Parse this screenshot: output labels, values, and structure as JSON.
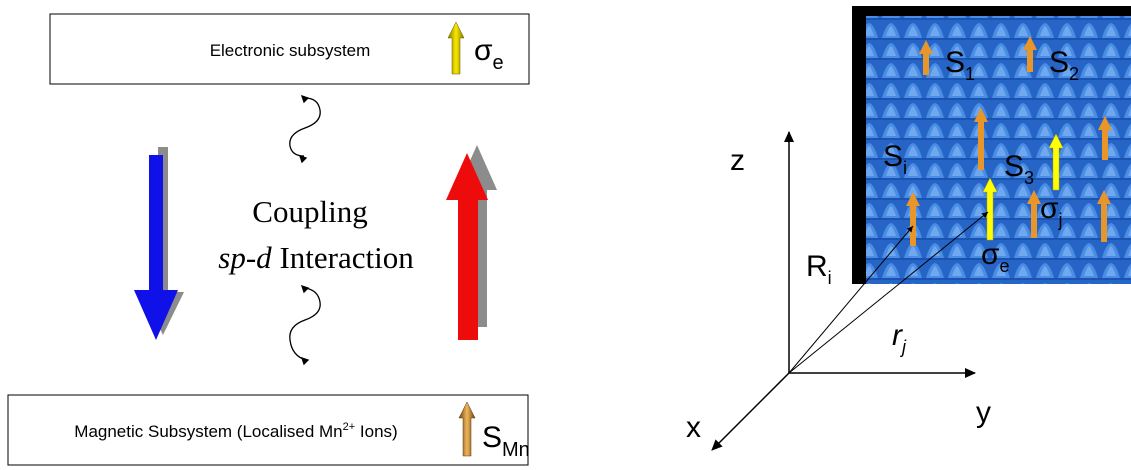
{
  "electronic_box": {
    "label": "Electronic subsystem",
    "symbol": "σ",
    "symbol_sub": "e"
  },
  "coupling": {
    "line1": "Coupling",
    "line2_italic": "sp-d",
    "line2_rest": " Interaction"
  },
  "magnetic_box": {
    "label_pre": "Magnetic Subsystem (Localised Mn",
    "label_sup": "2+",
    "label_post": " Ions)",
    "symbol": "S",
    "symbol_sub": "Mn"
  },
  "axes": {
    "z": "z",
    "y": "y",
    "x": "x"
  },
  "vectors": {
    "R": "R",
    "R_sub": "i",
    "r": "r",
    "r_sub": "j"
  },
  "lattice_labels": {
    "s1": "S",
    "s1_sub": "1",
    "s2": "S",
    "s2_sub": "2",
    "s3": "S",
    "s3_sub": "3",
    "si": "S",
    "si_sub": "i",
    "sigma_j": "σ",
    "sigma_j_sub": "j",
    "sigma_e": "σ",
    "sigma_e_sub": "e"
  },
  "colors": {
    "down_arrow": "#1010e8",
    "up_arrow": "#ee0b0b",
    "shadow": "#8c8c8c",
    "spin_orange": "#e8962a",
    "spin_yellow": "#ffff00",
    "lattice_blue": "#2f74d6",
    "sigma_arrow": "#c8b400",
    "smn_arrow": "#a8761c"
  }
}
